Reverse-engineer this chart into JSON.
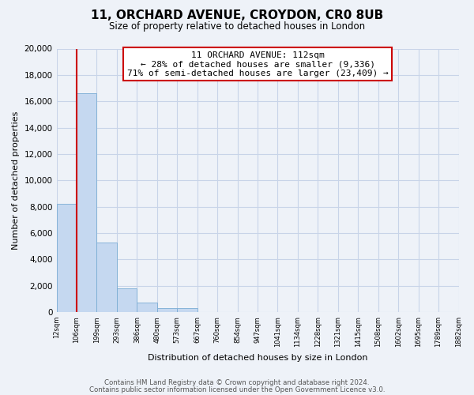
{
  "title": "11, ORCHARD AVENUE, CROYDON, CR0 8UB",
  "subtitle": "Size of property relative to detached houses in London",
  "xlabel": "Distribution of detached houses by size in London",
  "ylabel": "Number of detached properties",
  "bar_values": [
    8200,
    16600,
    5300,
    1800,
    750,
    300,
    300,
    0,
    0,
    0,
    0,
    0,
    0,
    0,
    0,
    0,
    0,
    0,
    0,
    0
  ],
  "bar_labels": [
    "12sqm",
    "106sqm",
    "199sqm",
    "293sqm",
    "386sqm",
    "480sqm",
    "573sqm",
    "667sqm",
    "760sqm",
    "854sqm",
    "947sqm",
    "1041sqm",
    "1134sqm",
    "1228sqm",
    "1321sqm",
    "1415sqm",
    "1508sqm",
    "1602sqm",
    "1695sqm",
    "1789sqm",
    "1882sqm"
  ],
  "bar_color": "#c5d8f0",
  "bar_edge_color": "#7aadd4",
  "vline_x": 1,
  "vline_color": "#cc0000",
  "annotation_title": "11 ORCHARD AVENUE: 112sqm",
  "annotation_line1": "← 28% of detached houses are smaller (9,336)",
  "annotation_line2": "71% of semi-detached houses are larger (23,409) →",
  "ylim": [
    0,
    20000
  ],
  "yticks": [
    0,
    2000,
    4000,
    6000,
    8000,
    10000,
    12000,
    14000,
    16000,
    18000,
    20000
  ],
  "footer1": "Contains HM Land Registry data © Crown copyright and database right 2024.",
  "footer2": "Contains public sector information licensed under the Open Government Licence v3.0.",
  "bg_color": "#eef2f8",
  "grid_color": "#c8d4e8"
}
